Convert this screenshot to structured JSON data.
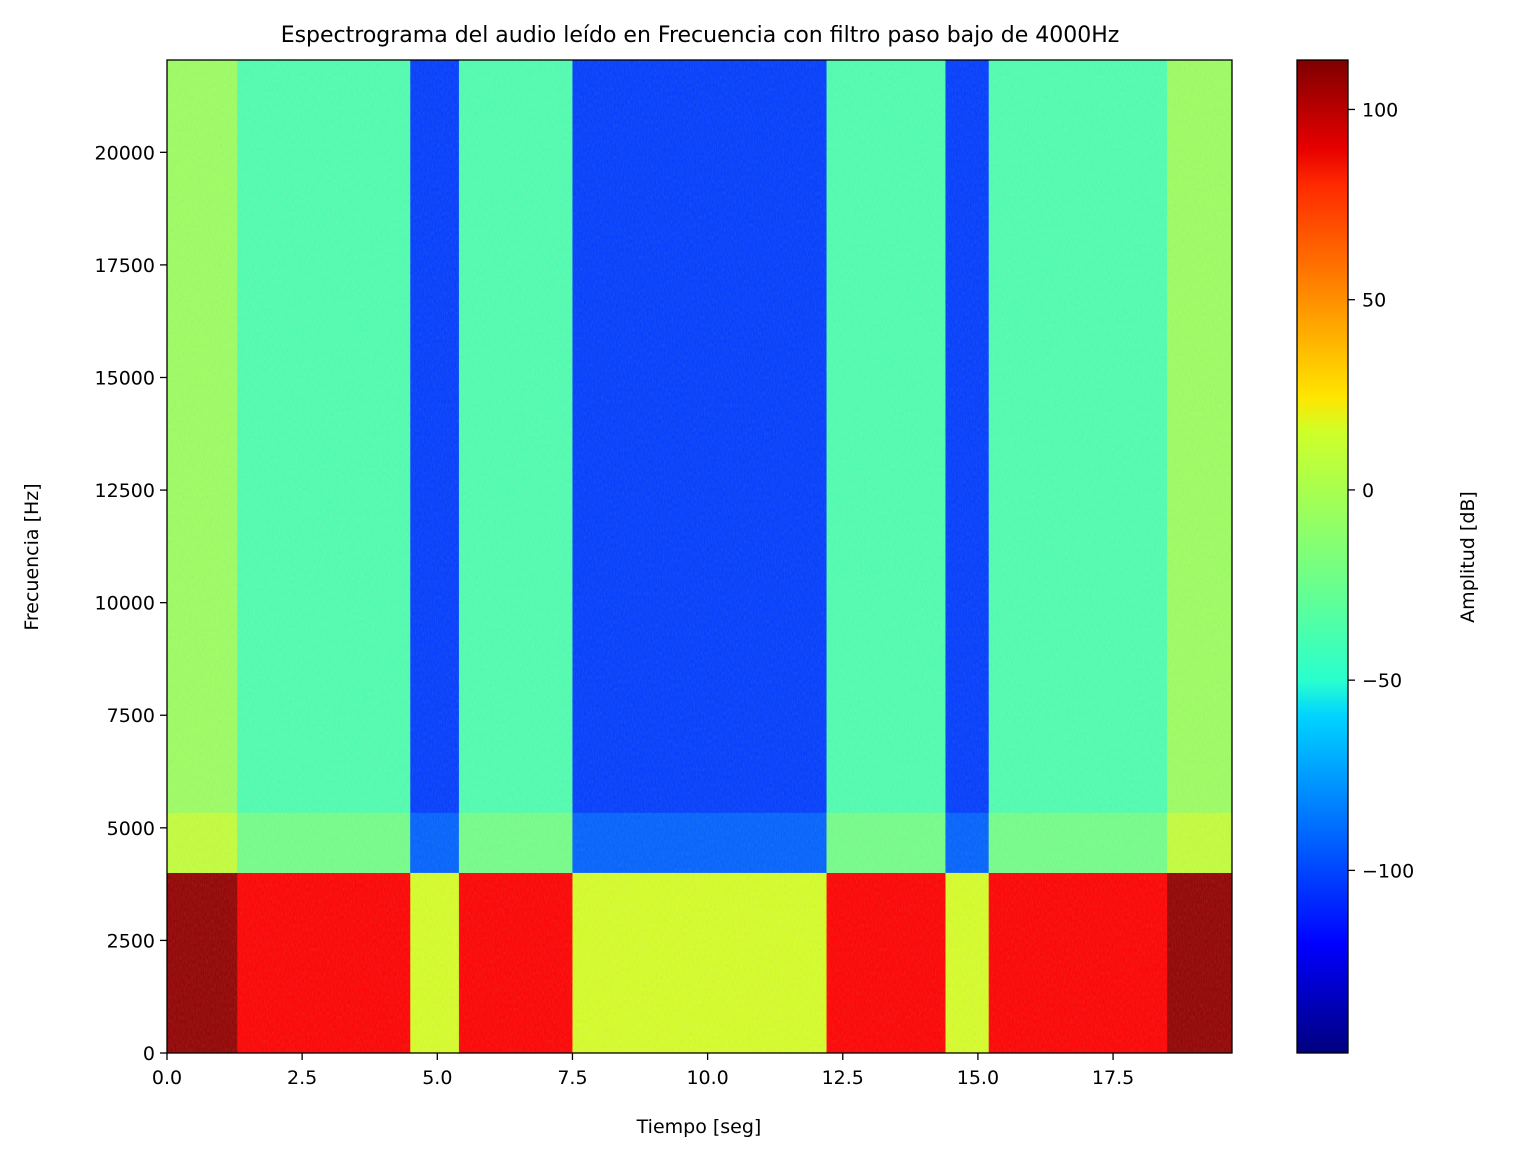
{
  "chart_data": {
    "type": "heatmap",
    "title": "Espectrograma del audio leído en Frecuencia con filtro paso bajo de 4000Hz",
    "xlabel": "Tiempo [seg]",
    "ylabel": "Frecuencia [Hz]",
    "xlim": [
      0,
      19.7
    ],
    "ylim": [
      0,
      22050
    ],
    "x_ticks": [
      0.0,
      2.5,
      5.0,
      7.5,
      10.0,
      12.5,
      15.0,
      17.5
    ],
    "x_tick_labels": [
      "0.0",
      "2.5",
      "5.0",
      "7.5",
      "10.0",
      "12.5",
      "15.0",
      "17.5"
    ],
    "y_ticks": [
      0,
      2500,
      5000,
      7500,
      10000,
      12500,
      15000,
      17500,
      20000
    ],
    "y_tick_labels": [
      "0",
      "2500",
      "5000",
      "7500",
      "10000",
      "12500",
      "15000",
      "17500",
      "20000"
    ],
    "colormap": "jet",
    "colorbar": {
      "label": "Amplitud [dB]",
      "range": [
        -148,
        113
      ],
      "ticks": [
        -100,
        -50,
        0,
        50,
        100
      ],
      "tick_labels": [
        "−100",
        "−50",
        "0",
        "50",
        "100"
      ]
    },
    "cutoff_hz": 4000,
    "segments": [
      {
        "t_start": 0.0,
        "t_end": 1.3,
        "low_band_db": 108,
        "high_band_db": -10
      },
      {
        "t_start": 1.3,
        "t_end": 4.5,
        "low_band_db": 80,
        "high_band_db": -30
      },
      {
        "t_start": 4.5,
        "t_end": 5.4,
        "low_band_db": 5,
        "high_band_db": -100
      },
      {
        "t_start": 5.4,
        "t_end": 7.5,
        "low_band_db": 80,
        "high_band_db": -30
      },
      {
        "t_start": 7.5,
        "t_end": 12.2,
        "low_band_db": 5,
        "high_band_db": -100
      },
      {
        "t_start": 12.2,
        "t_end": 14.4,
        "low_band_db": 80,
        "high_band_db": -30
      },
      {
        "t_start": 14.4,
        "t_end": 15.2,
        "low_band_db": 5,
        "high_band_db": -100
      },
      {
        "t_start": 15.2,
        "t_end": 18.5,
        "low_band_db": 80,
        "high_band_db": -30
      },
      {
        "t_start": 18.5,
        "t_end": 19.7,
        "low_band_db": 108,
        "high_band_db": -10
      }
    ]
  }
}
